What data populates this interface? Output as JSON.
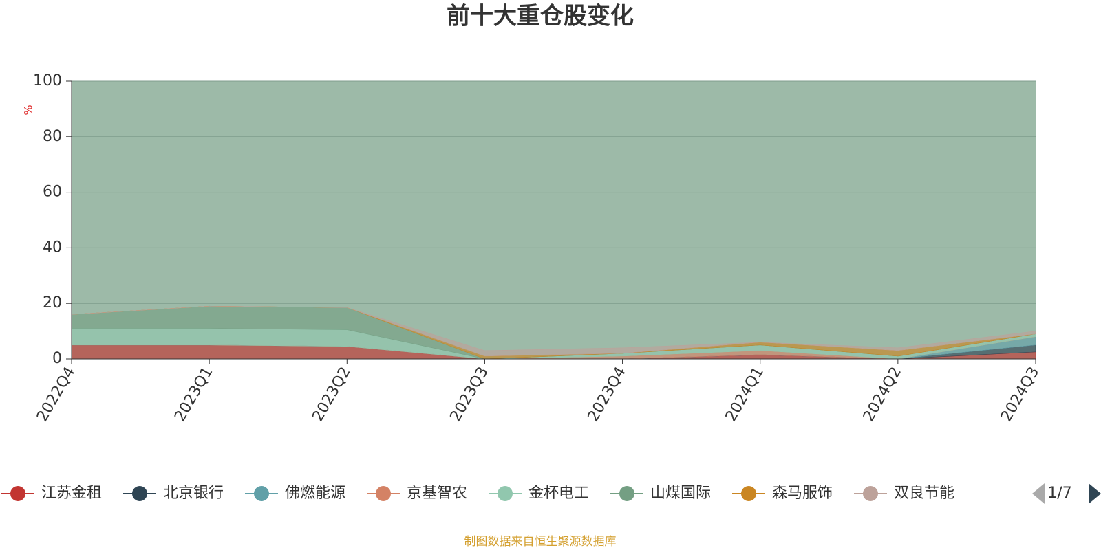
{
  "chart_data": {
    "type": "area",
    "title": "前十大重仓股变化",
    "y_label": "%",
    "source": "制图数据来自恒生聚源数据库",
    "pager": "1/7",
    "categories": [
      "2022Q4",
      "2023Q1",
      "2023Q2",
      "2023Q3",
      "2023Q4",
      "2024Q1",
      "2024Q2",
      "2024Q3"
    ],
    "ylim": [
      0,
      100
    ],
    "yticks": [
      0,
      20,
      40,
      60,
      80,
      100
    ],
    "grid": true,
    "stacked": true,
    "series": [
      {
        "name": "江苏金租",
        "color": "#c23531",
        "values": [
          5,
          5,
          4.5,
          0,
          0,
          1.5,
          0,
          2.5
        ]
      },
      {
        "name": "北京银行",
        "color": "#2f4554",
        "values": [
          0,
          0,
          0,
          0,
          0,
          0,
          0,
          2.5
        ]
      },
      {
        "name": "佛燃能源",
        "color": "#61a0a8",
        "values": [
          0,
          0,
          0,
          0,
          0,
          0,
          0,
          3
        ]
      },
      {
        "name": "京基智农",
        "color": "#d48265",
        "values": [
          0,
          0,
          0,
          0,
          1,
          1.5,
          0,
          0
        ]
      },
      {
        "name": "金杯电工",
        "color": "#91c7ae",
        "values": [
          6,
          6,
          6,
          0,
          1,
          2,
          1,
          1
        ]
      },
      {
        "name": "山煤国际",
        "color": "#749f83",
        "values": [
          5,
          8,
          8,
          0,
          0,
          0,
          0,
          0
        ]
      },
      {
        "name": "森马服饰",
        "color": "#ca8622",
        "values": [
          0,
          0,
          0,
          1,
          0,
          1,
          2,
          0
        ]
      },
      {
        "name": "双良节能",
        "color": "#bda29a",
        "values": [
          0,
          0,
          0,
          2,
          2,
          0,
          1,
          1
        ]
      }
    ]
  }
}
